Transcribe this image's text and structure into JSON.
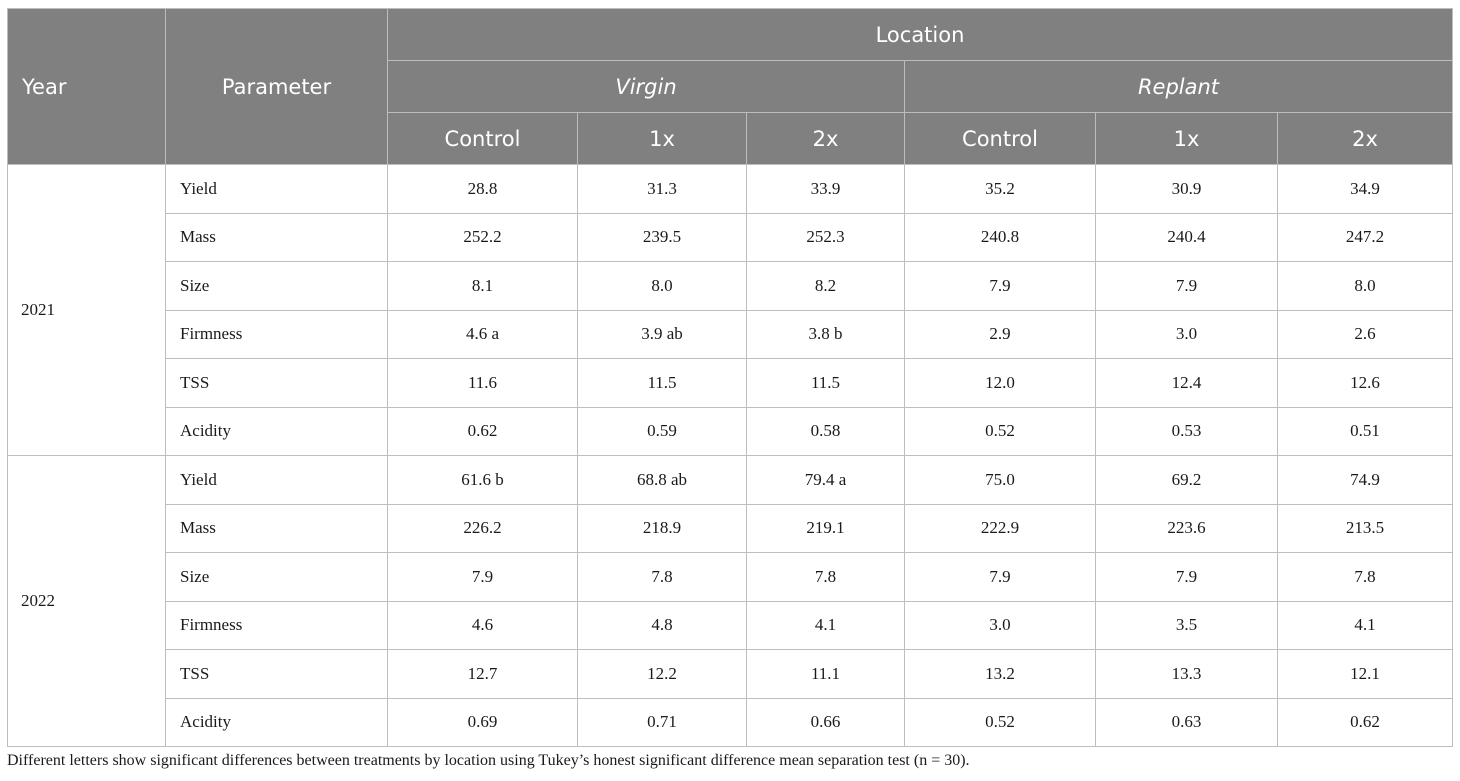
{
  "header": {
    "year": "Year",
    "parameter": "Parameter",
    "location": "Location",
    "groups": [
      "Virgin",
      "Replant"
    ],
    "treatments": [
      "Control",
      "1x",
      "2x",
      "Control",
      "1x",
      "2x"
    ]
  },
  "years": [
    {
      "year": "2021",
      "rows": [
        {
          "param": "Yield",
          "values": [
            "28.8",
            "31.3",
            "33.9",
            "35.2",
            "30.9",
            "34.9"
          ]
        },
        {
          "param": "Mass",
          "values": [
            "252.2",
            "239.5",
            "252.3",
            "240.8",
            "240.4",
            "247.2"
          ]
        },
        {
          "param": "Size",
          "values": [
            "8.1",
            "8.0",
            "8.2",
            "7.9",
            "7.9",
            "8.0"
          ]
        },
        {
          "param": "Firmness",
          "values": [
            "4.6 a",
            "3.9 ab",
            "3.8 b",
            "2.9",
            "3.0",
            "2.6"
          ]
        },
        {
          "param": "TSS",
          "values": [
            "11.6",
            "11.5",
            "11.5",
            "12.0",
            "12.4",
            "12.6"
          ]
        },
        {
          "param": "Acidity",
          "values": [
            "0.62",
            "0.59",
            "0.58",
            "0.52",
            "0.53",
            "0.51"
          ]
        }
      ]
    },
    {
      "year": "2022",
      "rows": [
        {
          "param": "Yield",
          "values": [
            "61.6 b",
            "68.8 ab",
            "79.4 a",
            "75.0",
            "69.2",
            "74.9"
          ]
        },
        {
          "param": "Mass",
          "values": [
            "226.2",
            "218.9",
            "219.1",
            "222.9",
            "223.6",
            "213.5"
          ]
        },
        {
          "param": "Size",
          "values": [
            "7.9",
            "7.8",
            "7.8",
            "7.9",
            "7.9",
            "7.8"
          ]
        },
        {
          "param": "Firmness",
          "values": [
            "4.6",
            "4.8",
            "4.1",
            "3.0",
            "3.5",
            "4.1"
          ]
        },
        {
          "param": "TSS",
          "values": [
            "12.7",
            "12.2",
            "11.1",
            "13.2",
            "13.3",
            "12.1"
          ]
        },
        {
          "param": "Acidity",
          "values": [
            "0.69",
            "0.71",
            "0.66",
            "0.52",
            "0.63",
            "0.62"
          ]
        }
      ]
    }
  ],
  "footnote": "Different letters show significant differences between treatments by location using Tukey’s honest significant difference mean separation test (n = 30).",
  "colors": {
    "header_bg": "#808080",
    "header_text": "#ffffff",
    "border": "#bdbdbd"
  }
}
